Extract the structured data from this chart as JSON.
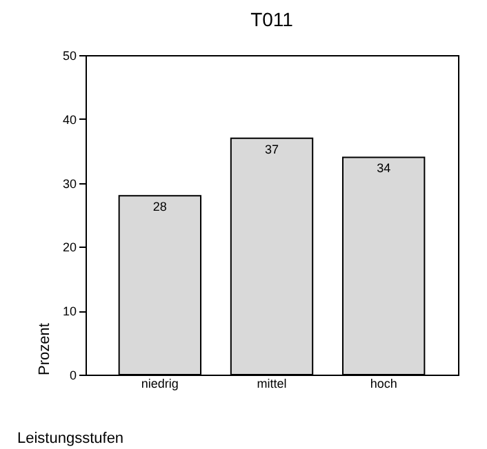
{
  "chart_data": {
    "type": "bar",
    "title": "T011",
    "xlabel": "Leistungsstufen",
    "ylabel": "Prozent",
    "categories": [
      "niedrig",
      "mittel",
      "hoch"
    ],
    "values": [
      28,
      37,
      34
    ],
    "color": "#d9d9d9",
    "ylim": [
      0,
      50
    ],
    "yticks": [
      0,
      10,
      20,
      30,
      40,
      50
    ],
    "grid": false,
    "data_labels": true
  }
}
